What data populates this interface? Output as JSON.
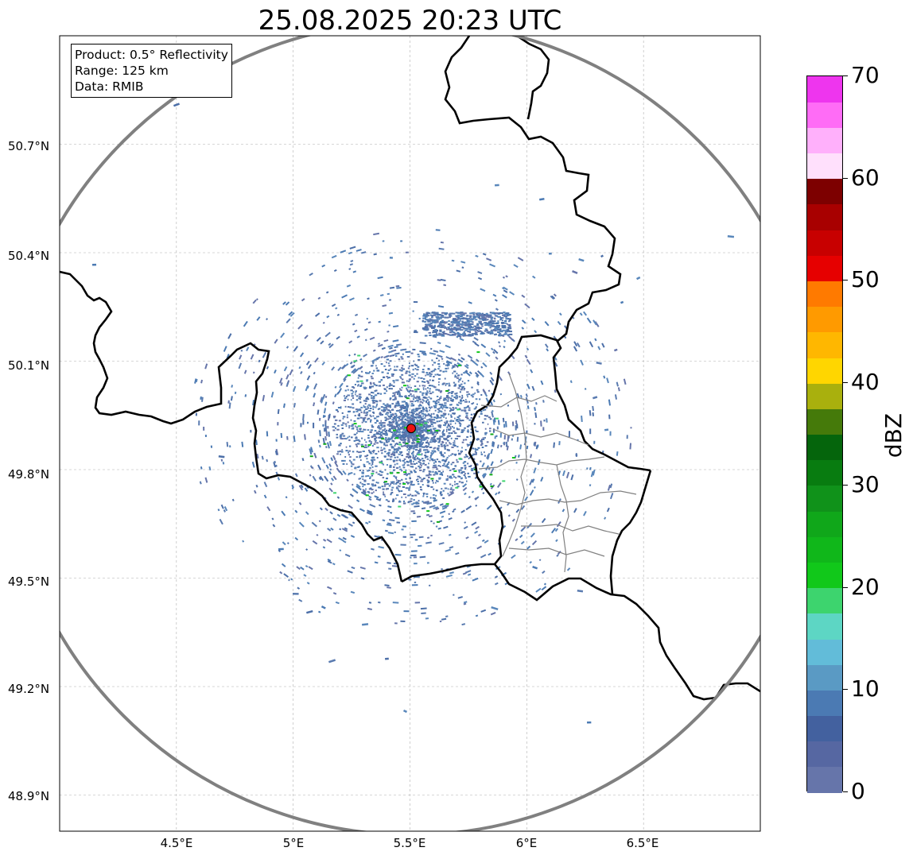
{
  "title": "25.08.2025 20:23 UTC",
  "infobox": {
    "product": "Product: 0.5° Reflectivity",
    "range": "Range: 125 km",
    "data": "Data: RMIB"
  },
  "axes": {
    "lat_ticks": [
      "50.7°N",
      "50.4°N",
      "50.1°N",
      "49.8°N",
      "49.5°N",
      "49.2°N",
      "48.9°N"
    ],
    "lon_ticks": [
      "4.5°E",
      "5°E",
      "5.5°E",
      "6°E",
      "6.5°E"
    ]
  },
  "map": {
    "projection": "PlateCarree",
    "extent_lon": [
      4.0,
      7.0
    ],
    "extent_lat": [
      48.8,
      51.0
    ],
    "radar_site": {
      "lon": 5.505,
      "lat": 49.914
    },
    "range_ring_km": 125,
    "grid": true
  },
  "colorbar": {
    "label": "dBZ",
    "min": 0,
    "max": 70,
    "step": 2.5,
    "tick_labels": [
      "0",
      "10",
      "20",
      "30",
      "40",
      "50",
      "60",
      "70"
    ],
    "colors": [
      "#6675aa",
      "#5667a2",
      "#43619f",
      "#4b7ab3",
      "#5a9ac4",
      "#62bcd9",
      "#5dd6c4",
      "#3dd46e",
      "#11c81a",
      "#10b71a",
      "#10a71a",
      "#10921a",
      "#087c10",
      "#05650c",
      "#457a0a",
      "#a9b00d",
      "#ffd600",
      "#ffb700",
      "#ff9a00",
      "#ff7a00",
      "#e60000",
      "#c80000",
      "#a80000",
      "#7d0000",
      "#ffe0fc",
      "#ffb0fb",
      "#ff6cf6",
      "#ee35ee"
    ]
  },
  "colors": {
    "border_thick": "#000000",
    "province_lines": "#808080",
    "range_ring": "#808080",
    "radar_marker": "#ee1111",
    "gridlines": "#b0b0b0"
  }
}
